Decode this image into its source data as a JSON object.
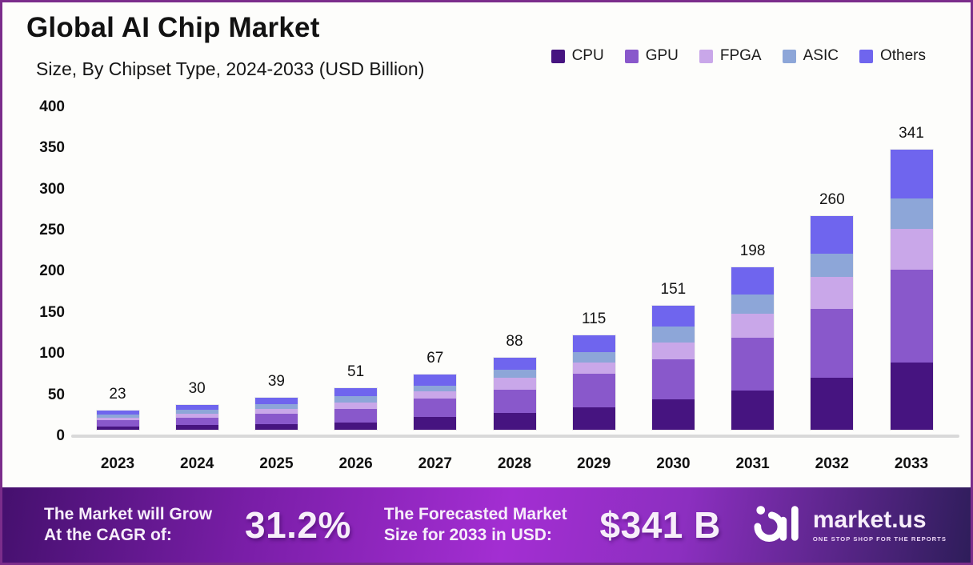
{
  "page": {
    "background": "#fdfdfb",
    "border_color": "#7b2d8b"
  },
  "header": {
    "title": "Global AI Chip Market",
    "subtitle": "Size, By Chipset Type, 2024-2033 (USD Billion)"
  },
  "chart_data": {
    "type": "bar",
    "stacked": true,
    "title": "Global AI Chip Market Size, By Chipset Type, 2024-2033 (USD Billion)",
    "categories": [
      "2023",
      "2024",
      "2025",
      "2026",
      "2027",
      "2028",
      "2029",
      "2030",
      "2031",
      "2032",
      "2033"
    ],
    "series": [
      {
        "name": "CPU",
        "color": "#461480",
        "values": [
          4,
          5.5,
          7,
          9,
          16,
          20,
          27,
          37,
          48,
          63,
          82
        ]
      },
      {
        "name": "GPU",
        "color": "#8958cb",
        "values": [
          7.5,
          9.5,
          12.5,
          16,
          22,
          29,
          41,
          49,
          64,
          84,
          113
        ]
      },
      {
        "name": "FPGA",
        "color": "#c9a7e9",
        "values": [
          3.5,
          4.5,
          6,
          8,
          9,
          14,
          14,
          20,
          29,
          39,
          49
        ]
      },
      {
        "name": "ASIC",
        "color": "#8da6d8",
        "values": [
          3.5,
          4.5,
          6,
          8,
          7,
          10,
          12,
          20,
          23,
          28,
          37
        ]
      },
      {
        "name": "Others",
        "color": "#6f65ee",
        "values": [
          4.5,
          6,
          7.5,
          10,
          13,
          15,
          21,
          25,
          34,
          46,
          60
        ]
      }
    ],
    "totals": [
      23,
      30,
      39,
      51,
      67,
      88,
      115,
      151,
      198,
      260,
      341
    ],
    "yticks": [
      0,
      50,
      100,
      150,
      200,
      250,
      300,
      350,
      400
    ],
    "ylim": [
      0,
      400
    ],
    "xlabel": "",
    "ylabel": "",
    "grid": false,
    "legend_position": "top-right"
  },
  "banner": {
    "grow_line1": "The Market will Grow",
    "grow_line2": "At the CAGR of:",
    "cagr": "31.2%",
    "forecast_line1": "The Forecasted Market",
    "forecast_line2": "Size for 2033 in USD:",
    "forecast_value": "$341 B",
    "brand": "market.us",
    "tagline": "ONE STOP SHOP FOR THE REPORTS"
  }
}
